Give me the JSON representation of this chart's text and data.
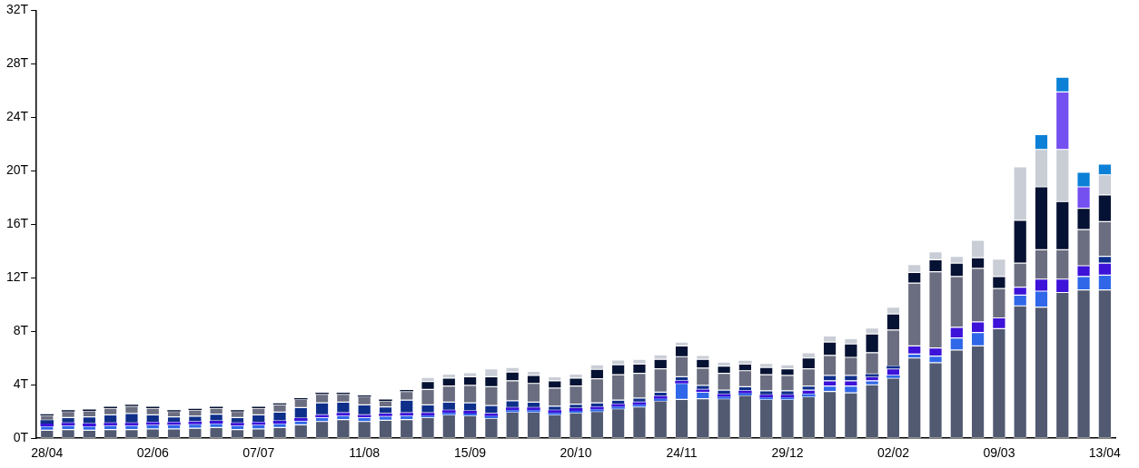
{
  "chart_data": {
    "type": "bar",
    "stacked": true,
    "legend": false,
    "grid": false,
    "categories": [
      "28/04",
      null,
      null,
      null,
      null,
      "02/06",
      null,
      null,
      null,
      null,
      "07/07",
      null,
      null,
      null,
      null,
      "11/08",
      null,
      null,
      null,
      null,
      "15/09",
      null,
      null,
      null,
      null,
      "20/10",
      null,
      null,
      null,
      null,
      "24/11",
      null,
      null,
      null,
      null,
      "29/12",
      null,
      null,
      null,
      null,
      "02/02",
      null,
      null,
      null,
      null,
      "09/03",
      null,
      null,
      null,
      null,
      "13/04"
    ],
    "ylim": [
      0,
      32
    ],
    "yticks": [
      {
        "value": 0,
        "label": "0T"
      },
      {
        "value": 4,
        "label": "4T"
      },
      {
        "value": 8,
        "label": "8T"
      },
      {
        "value": 12,
        "label": "12T"
      },
      {
        "value": 16,
        "label": "16T"
      },
      {
        "value": 20,
        "label": "20T"
      },
      {
        "value": 24,
        "label": "24T"
      },
      {
        "value": 28,
        "label": "28T"
      },
      {
        "value": 32,
        "label": "32T"
      }
    ],
    "series": [
      {
        "color": "#525a72",
        "values": [
          0.6,
          0.65,
          0.6,
          0.65,
          0.65,
          0.7,
          0.7,
          0.75,
          0.8,
          0.65,
          0.7,
          0.8,
          1.0,
          1.25,
          1.4,
          1.25,
          1.35,
          1.4,
          1.55,
          1.75,
          1.7,
          1.5,
          1.95,
          1.95,
          1.75,
          1.9,
          2.0,
          2.2,
          2.35,
          2.8,
          2.9,
          2.95,
          2.95,
          3.2,
          2.9,
          2.9,
          3.1,
          3.5,
          3.4,
          4.0,
          4.5,
          6.0,
          5.65,
          6.6,
          6.9,
          8.2,
          9.9,
          9.8,
          10.9,
          11.1,
          11.1
        ]
      },
      {
        "color": "#2f67e8",
        "values": [
          0.3,
          0.3,
          0.3,
          0.3,
          0.3,
          0.3,
          0.3,
          0.3,
          0.3,
          0.3,
          0.3,
          0.3,
          0.3,
          0.3,
          0.3,
          0.3,
          0.3,
          0.3,
          0.15,
          0.15,
          0.15,
          0.15,
          0.15,
          0.15,
          0.15,
          0.15,
          0.15,
          0.15,
          0.15,
          0.15,
          1.2,
          0.5,
          0.15,
          0.15,
          0.15,
          0.15,
          0.2,
          0.4,
          0.5,
          0.3,
          0.2,
          0.3,
          0.5,
          0.9,
          1.0,
          0,
          0.8,
          1.2,
          0,
          1.0,
          1.1
        ]
      },
      {
        "color": "#3d12d9",
        "values": [
          0.2,
          0.2,
          0.2,
          0.2,
          0.2,
          0.2,
          0.2,
          0.2,
          0.2,
          0.2,
          0.2,
          0.2,
          0.2,
          0.2,
          0.2,
          0.2,
          0.2,
          0.2,
          0.2,
          0.2,
          0.2,
          0.2,
          0.2,
          0.2,
          0.2,
          0.2,
          0.2,
          0.2,
          0.2,
          0.2,
          0.2,
          0.2,
          0.2,
          0.2,
          0.2,
          0.2,
          0.3,
          0.4,
          0.4,
          0.3,
          0.5,
          0.6,
          0.6,
          0.8,
          0.8,
          0.8,
          0.6,
          0.9,
          1.0,
          0.8,
          0.9
        ]
      },
      {
        "color": "#0d2f8a",
        "values": [
          0.25,
          0.4,
          0.5,
          0.6,
          0.7,
          0.55,
          0.4,
          0.4,
          0.5,
          0.4,
          0.55,
          0.65,
          0.8,
          0.9,
          0.8,
          0.75,
          0.5,
          0.95,
          0.6,
          0.6,
          0.6,
          0.6,
          0.5,
          0.4,
          0.3,
          0.3,
          0.3,
          0.3,
          0.3,
          0.3,
          0.3,
          0.3,
          0.3,
          0.3,
          0.3,
          0.3,
          0.3,
          0.4,
          0.4,
          0.2,
          0.2,
          0,
          0,
          0,
          0,
          0,
          0,
          0,
          0,
          0,
          0.5
        ]
      },
      {
        "color": "#6b6e80",
        "values": [
          0.35,
          0.45,
          0.45,
          0.5,
          0.55,
          0.5,
          0.4,
          0.45,
          0.45,
          0.45,
          0.5,
          0.55,
          0.6,
          0.65,
          0.6,
          0.6,
          0.45,
          0.65,
          1.15,
          1.2,
          1.3,
          1.4,
          1.5,
          1.4,
          1.35,
          1.35,
          1.8,
          1.9,
          1.85,
          1.75,
          1.5,
          1.3,
          1.25,
          1.2,
          1.2,
          1.15,
          1.3,
          1.5,
          1.35,
          1.6,
          2.7,
          4.7,
          5.7,
          3.8,
          4.0,
          2.2,
          1.8,
          2.2,
          2.2,
          2.7,
          2.6
        ]
      },
      {
        "color": "#061233",
        "values": [
          0.1,
          0.1,
          0.1,
          0.1,
          0.1,
          0.1,
          0.1,
          0.1,
          0.1,
          0.1,
          0.1,
          0.1,
          0.1,
          0.1,
          0.1,
          0.1,
          0.1,
          0.1,
          0.6,
          0.6,
          0.65,
          0.75,
          0.65,
          0.6,
          0.55,
          0.6,
          0.7,
          0.75,
          0.7,
          0.7,
          0.8,
          0.65,
          0.55,
          0.5,
          0.55,
          0.5,
          0.8,
          1.0,
          1.0,
          1.4,
          1.2,
          0.8,
          0.9,
          1.0,
          0.8,
          0.9,
          3.2,
          4.7,
          3.6,
          1.6,
          2.0
        ]
      },
      {
        "color": "#c9cdd6",
        "values": [
          0,
          0,
          0,
          0,
          0,
          0,
          0,
          0,
          0,
          0,
          0,
          0,
          0,
          0,
          0,
          0,
          0,
          0,
          0.3,
          0.3,
          0.3,
          0.6,
          0.35,
          0.3,
          0.3,
          0.3,
          0.35,
          0.35,
          0.35,
          0.35,
          0.3,
          0.3,
          0.3,
          0.25,
          0.3,
          0.3,
          0.4,
          0.45,
          0.4,
          0.45,
          0.5,
          0.6,
          0.6,
          0.5,
          1.3,
          1.3,
          4.0,
          2.8,
          3.9,
          0,
          1.5
        ]
      },
      {
        "color": "#7550f0",
        "values": [
          0,
          0,
          0,
          0,
          0,
          0,
          0,
          0,
          0,
          0,
          0,
          0,
          0,
          0,
          0,
          0,
          0,
          0,
          0,
          0,
          0,
          0,
          0,
          0,
          0,
          0,
          0,
          0,
          0,
          0,
          0,
          0,
          0,
          0,
          0,
          0,
          0,
          0,
          0,
          0,
          0,
          0,
          0,
          0,
          0,
          0,
          0,
          0,
          4.3,
          1.6,
          0
        ]
      },
      {
        "color": "#0b80d6",
        "values": [
          0,
          0,
          0,
          0,
          0,
          0,
          0,
          0,
          0,
          0,
          0,
          0,
          0,
          0,
          0,
          0,
          0,
          0,
          0,
          0,
          0,
          0,
          0,
          0,
          0,
          0,
          0,
          0,
          0,
          0,
          0,
          0,
          0,
          0,
          0,
          0,
          0,
          0,
          0,
          0,
          0,
          0,
          0,
          0,
          0,
          0,
          0,
          1.1,
          1.1,
          1.1,
          0.8
        ]
      }
    ]
  }
}
